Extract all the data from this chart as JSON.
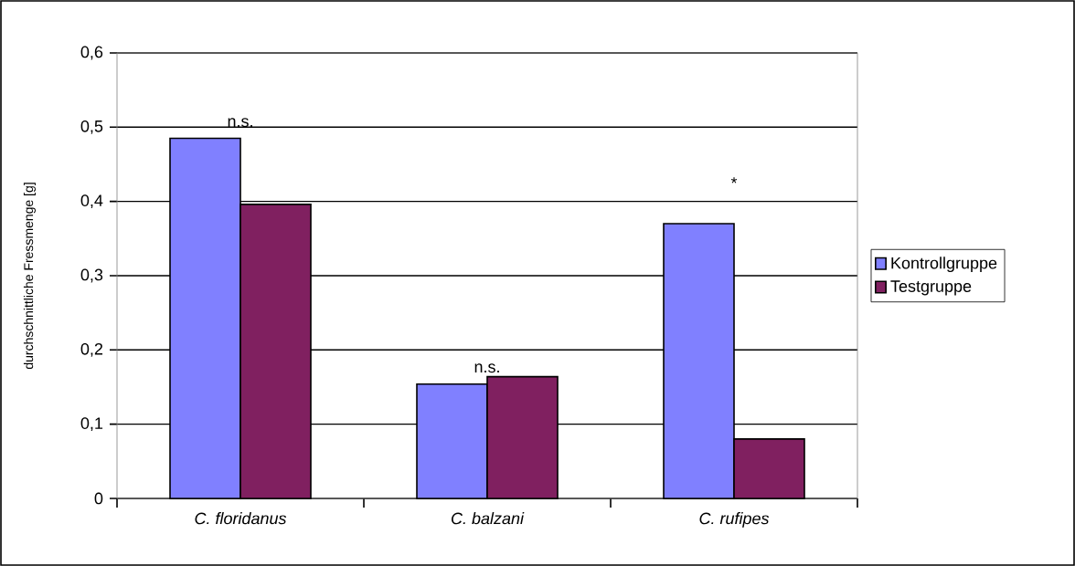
{
  "chart_data": {
    "type": "bar",
    "ylabel": "durchschnittliche Fressmenge [g]",
    "categories": [
      "C. floridanus",
      "C. balzani",
      "C. rufipes"
    ],
    "series": [
      {
        "name": "Kontrollgruppe",
        "color": "#8080ff",
        "values": [
          0.485,
          0.154,
          0.37
        ]
      },
      {
        "name": "Testgruppe",
        "color": "#802060",
        "values": [
          0.396,
          0.164,
          0.08
        ]
      }
    ],
    "ylim": [
      0,
      0.6
    ],
    "yticks": [
      0,
      {
        "value": 0.1,
        "label": "0,1"
      },
      {
        "value": 0.2,
        "label": "0,2"
      },
      {
        "value": 0.3,
        "label": "0,3"
      },
      {
        "value": 0.4,
        "label": "0,4"
      },
      {
        "value": 0.5,
        "label": "0,5"
      },
      {
        "value": 0.6,
        "label": "0,6"
      }
    ],
    "grid": "y",
    "legend": "right",
    "annotations": [
      "n.s.",
      "n.s.",
      "*"
    ]
  }
}
